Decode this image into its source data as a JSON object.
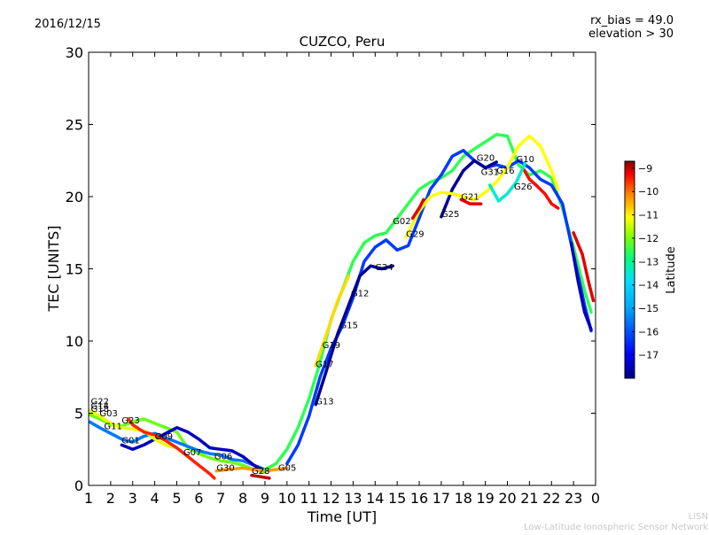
{
  "date_label": "2016/12/15",
  "bias_label": "rx_bias = 49.0",
  "elevation_label": "elevation > 30",
  "watermark": {
    "line1": "LISN",
    "line2": "Low-Latitude Ionospheric Sensor Network"
  },
  "chart_data": {
    "type": "scatter",
    "title": "CUZCO, Peru",
    "xlabel": "Time [UT]",
    "ylabel": "TEC [UNITS]",
    "xlim": [
      1,
      24
    ],
    "ylim": [
      0,
      30
    ],
    "x_ticks": [
      "1",
      "2",
      "3",
      "4",
      "5",
      "6",
      "7",
      "8",
      "9",
      "10",
      "11",
      "12",
      "13",
      "14",
      "15",
      "16",
      "17",
      "18",
      "19",
      "20",
      "21",
      "22",
      "23",
      "0"
    ],
    "y_ticks": [
      "0",
      "5",
      "10",
      "15",
      "20",
      "25",
      "30"
    ],
    "grid": false,
    "colorbar": {
      "label": "Latitude",
      "range": [
        -18,
        -8.7
      ],
      "ticks": [
        "-9",
        "-10",
        "-11",
        "-12",
        "-13",
        "-14",
        "-15",
        "-16",
        "-17"
      ],
      "colormap": [
        "#000080",
        "#0000ff",
        "#0080ff",
        "#00e0ff",
        "#00ff80",
        "#80ff00",
        "#ffff00",
        "#ff8000",
        "#ff0000",
        "#800000"
      ]
    },
    "satellite_labels": [
      {
        "name": "G22",
        "x": 1.1,
        "y": 5.6
      },
      {
        "name": "G14",
        "x": 1.1,
        "y": 5.3
      },
      {
        "name": "G18",
        "x": 1.1,
        "y": 5.1
      },
      {
        "name": "G03",
        "x": 1.5,
        "y": 4.8
      },
      {
        "name": "G11",
        "x": 1.7,
        "y": 3.9
      },
      {
        "name": "G23",
        "x": 2.5,
        "y": 4.3
      },
      {
        "name": "G01",
        "x": 2.5,
        "y": 2.9
      },
      {
        "name": "G09",
        "x": 4.0,
        "y": 3.2
      },
      {
        "name": "G07",
        "x": 5.3,
        "y": 2.1
      },
      {
        "name": "G06",
        "x": 6.7,
        "y": 1.8
      },
      {
        "name": "G30",
        "x": 6.8,
        "y": 1.0
      },
      {
        "name": "G28",
        "x": 8.4,
        "y": 0.8
      },
      {
        "name": "G05",
        "x": 9.6,
        "y": 1.0
      },
      {
        "name": "G13",
        "x": 11.3,
        "y": 5.6
      },
      {
        "name": "G17",
        "x": 11.3,
        "y": 8.2
      },
      {
        "name": "G19",
        "x": 11.6,
        "y": 9.5
      },
      {
        "name": "G15",
        "x": 12.4,
        "y": 10.9
      },
      {
        "name": "G12",
        "x": 12.9,
        "y": 13.1
      },
      {
        "name": "G24",
        "x": 14.0,
        "y": 14.9
      },
      {
        "name": "G02",
        "x": 14.8,
        "y": 18.1
      },
      {
        "name": "G29",
        "x": 15.4,
        "y": 17.2
      },
      {
        "name": "G25",
        "x": 17.0,
        "y": 18.6
      },
      {
        "name": "G21",
        "x": 17.9,
        "y": 19.8
      },
      {
        "name": "G20",
        "x": 18.6,
        "y": 22.5
      },
      {
        "name": "G31",
        "x": 18.8,
        "y": 21.5
      },
      {
        "name": "G16",
        "x": 19.5,
        "y": 21.6
      },
      {
        "name": "G10",
        "x": 20.4,
        "y": 22.4
      },
      {
        "name": "G26",
        "x": 20.3,
        "y": 20.5
      }
    ],
    "traces": [
      {
        "lat": -13,
        "points": [
          [
            1.05,
            4.9
          ],
          [
            1.5,
            4.6
          ],
          [
            2.0,
            4.2
          ],
          [
            2.5,
            4.1
          ],
          [
            3.0,
            4.4
          ],
          [
            3.5,
            4.6
          ],
          [
            4.0,
            4.3
          ],
          [
            4.5,
            4.0
          ],
          [
            5.0,
            3.7
          ],
          [
            5.5,
            2.6
          ],
          [
            6.0,
            2.2
          ],
          [
            6.5,
            1.9
          ],
          [
            7.0,
            1.7
          ],
          [
            7.5,
            1.6
          ],
          [
            8.0,
            1.4
          ],
          [
            8.5,
            1.1
          ],
          [
            9.0,
            0.9
          ]
        ]
      },
      {
        "lat": -16,
        "points": [
          [
            1.05,
            4.4
          ],
          [
            1.5,
            4.0
          ],
          [
            2.0,
            3.6
          ],
          [
            2.5,
            3.2
          ],
          [
            3.0,
            3.0
          ],
          [
            3.5,
            3.4
          ],
          [
            4.0,
            3.6
          ],
          [
            4.5,
            3.3
          ],
          [
            5.0,
            3.0
          ],
          [
            5.5,
            2.7
          ],
          [
            6.0,
            2.4
          ],
          [
            6.5,
            2.2
          ],
          [
            7.0,
            2.1
          ],
          [
            7.5,
            1.8
          ],
          [
            8.0,
            1.7
          ],
          [
            8.5,
            1.4
          ],
          [
            9.0,
            1.1
          ]
        ]
      },
      {
        "lat": -17.5,
        "points": [
          [
            2.5,
            2.8
          ],
          [
            3.0,
            2.5
          ],
          [
            3.5,
            2.8
          ],
          [
            4.0,
            3.2
          ],
          [
            4.5,
            3.6
          ],
          [
            5.0,
            4.0
          ],
          [
            5.5,
            3.7
          ],
          [
            6.0,
            3.2
          ],
          [
            6.5,
            2.6
          ],
          [
            7.0,
            2.5
          ],
          [
            7.5,
            2.4
          ],
          [
            8.0,
            2.0
          ],
          [
            8.5,
            1.4
          ],
          [
            9.0,
            1.0
          ]
        ]
      },
      {
        "lat": -12,
        "points": [
          [
            1.05,
            5.2
          ],
          [
            1.5,
            4.8
          ],
          [
            2.0,
            4.3
          ],
          [
            2.5,
            4.0
          ],
          [
            3.0,
            3.9
          ],
          [
            3.5,
            3.8
          ],
          [
            4.0,
            3.2
          ],
          [
            4.5,
            2.8
          ],
          [
            5.0,
            2.6
          ]
        ]
      },
      {
        "lat": -10,
        "points": [
          [
            2.8,
            4.6
          ],
          [
            3.0,
            4.2
          ],
          [
            3.5,
            3.7
          ],
          [
            4.0,
            3.5
          ],
          [
            4.5,
            3.1
          ],
          [
            5.0,
            2.6
          ],
          [
            5.5,
            2.0
          ],
          [
            6.0,
            1.4
          ],
          [
            6.5,
            0.8
          ],
          [
            6.7,
            0.5
          ]
        ]
      },
      {
        "lat": -11,
        "points": [
          [
            6.8,
            1.0
          ],
          [
            7.3,
            1.1
          ],
          [
            8.0,
            1.2
          ],
          [
            8.5,
            1.1
          ],
          [
            9.0,
            1.0
          ],
          [
            9.5,
            1.1
          ],
          [
            10.0,
            1.2
          ]
        ]
      },
      {
        "lat": -9.2,
        "points": [
          [
            8.4,
            0.7
          ],
          [
            8.8,
            0.6
          ],
          [
            9.2,
            0.5
          ]
        ]
      },
      {
        "lat": -13.5,
        "points": [
          [
            9.0,
            1.1
          ],
          [
            9.5,
            1.5
          ],
          [
            10.0,
            2.5
          ],
          [
            10.5,
            4.0
          ],
          [
            11.0,
            6.0
          ],
          [
            11.5,
            8.5
          ],
          [
            12.0,
            11.5
          ],
          [
            12.5,
            13.5
          ],
          [
            13.0,
            15.5
          ],
          [
            13.5,
            16.8
          ],
          [
            14.0,
            17.3
          ],
          [
            14.5,
            17.5
          ],
          [
            15.0,
            18.5
          ],
          [
            15.5,
            19.5
          ],
          [
            16.0,
            20.5
          ],
          [
            16.5,
            21.0
          ],
          [
            17.0,
            21.3
          ],
          [
            17.5,
            21.8
          ],
          [
            18.0,
            22.8
          ],
          [
            18.5,
            23.3
          ],
          [
            19.0,
            23.8
          ],
          [
            19.5,
            24.3
          ],
          [
            20.0,
            24.2
          ],
          [
            20.5,
            22.2
          ],
          [
            21.0,
            21.5
          ],
          [
            21.5,
            21.8
          ],
          [
            22.0,
            21.3
          ],
          [
            22.5,
            19.2
          ],
          [
            23.0,
            16.5
          ],
          [
            23.5,
            13.5
          ],
          [
            23.8,
            12.0
          ]
        ]
      },
      {
        "lat": -16.5,
        "points": [
          [
            10.0,
            1.5
          ],
          [
            10.5,
            2.8
          ],
          [
            11.0,
            4.8
          ],
          [
            11.5,
            7.5
          ],
          [
            12.0,
            9.5
          ],
          [
            12.5,
            11.0
          ],
          [
            13.0,
            13.0
          ],
          [
            13.5,
            15.5
          ],
          [
            14.0,
            16.5
          ],
          [
            14.5,
            17.0
          ],
          [
            15.0,
            16.3
          ],
          [
            15.5,
            16.6
          ],
          [
            16.0,
            18.5
          ],
          [
            16.5,
            20.5
          ],
          [
            17.0,
            21.5
          ],
          [
            17.5,
            22.8
          ],
          [
            18.0,
            23.2
          ],
          [
            18.5,
            22.5
          ],
          [
            19.0,
            22.0
          ],
          [
            19.5,
            22.2
          ],
          [
            20.0,
            22.0
          ],
          [
            20.5,
            22.5
          ],
          [
            21.0,
            22.0
          ],
          [
            21.5,
            21.2
          ],
          [
            22.0,
            20.8
          ],
          [
            22.5,
            19.5
          ],
          [
            23.0,
            16.0
          ],
          [
            23.5,
            12.5
          ],
          [
            23.8,
            10.7
          ]
        ]
      },
      {
        "lat": -17.8,
        "points": [
          [
            11.3,
            5.6
          ],
          [
            11.8,
            8.0
          ],
          [
            12.3,
            10.5
          ],
          [
            12.8,
            12.5
          ],
          [
            13.3,
            14.5
          ],
          [
            13.8,
            15.2
          ],
          [
            14.3,
            15.0
          ],
          [
            14.8,
            15.2
          ]
        ]
      },
      {
        "lat": -17.8,
        "points": [
          [
            17.0,
            18.6
          ],
          [
            17.5,
            20.5
          ],
          [
            18.0,
            21.8
          ],
          [
            18.5,
            22.5
          ],
          [
            19.0,
            22.0
          ],
          [
            19.5,
            22.4
          ]
        ]
      },
      {
        "lat": -11.5,
        "points": [
          [
            11.3,
            8.3
          ],
          [
            11.8,
            10.5
          ],
          [
            12.3,
            12.8
          ],
          [
            12.8,
            14.5
          ]
        ]
      },
      {
        "lat": -11.8,
        "points": [
          [
            15.4,
            17.2
          ],
          [
            16.0,
            19.0
          ],
          [
            16.5,
            20.0
          ],
          [
            17.0,
            20.3
          ],
          [
            17.5,
            20.2
          ],
          [
            18.0,
            20.0
          ],
          [
            18.5,
            19.8
          ],
          [
            19.0,
            20.3
          ],
          [
            19.5,
            21.0
          ],
          [
            20.0,
            22.0
          ],
          [
            20.5,
            23.5
          ],
          [
            21.0,
            24.2
          ],
          [
            21.5,
            23.5
          ],
          [
            22.0,
            21.8
          ],
          [
            22.3,
            20.5
          ]
        ]
      },
      {
        "lat": -9.5,
        "points": [
          [
            15.7,
            18.5
          ],
          [
            16.0,
            19.2
          ],
          [
            16.2,
            19.8
          ]
        ]
      },
      {
        "lat": -9.5,
        "points": [
          [
            17.9,
            19.8
          ],
          [
            18.3,
            19.5
          ],
          [
            18.8,
            19.5
          ]
        ]
      },
      {
        "lat": -9.8,
        "points": [
          [
            20.7,
            22.0
          ],
          [
            21.0,
            21.2
          ],
          [
            21.3,
            20.8
          ],
          [
            21.7,
            20.2
          ],
          [
            22.0,
            19.5
          ],
          [
            22.3,
            19.2
          ]
        ]
      },
      {
        "lat": -14.5,
        "points": [
          [
            19.2,
            20.8
          ],
          [
            19.6,
            19.7
          ],
          [
            20.0,
            20.2
          ],
          [
            20.4,
            21.0
          ],
          [
            20.8,
            22.3
          ]
        ]
      },
      {
        "lat": -9.5,
        "points": [
          [
            23.0,
            17.5
          ],
          [
            23.4,
            16.0
          ],
          [
            23.7,
            14.0
          ],
          [
            23.9,
            12.8
          ]
        ]
      },
      {
        "lat": -17.5,
        "points": [
          [
            22.9,
            16.8
          ],
          [
            23.2,
            14.2
          ],
          [
            23.5,
            12.0
          ],
          [
            23.8,
            10.8
          ]
        ]
      }
    ]
  }
}
